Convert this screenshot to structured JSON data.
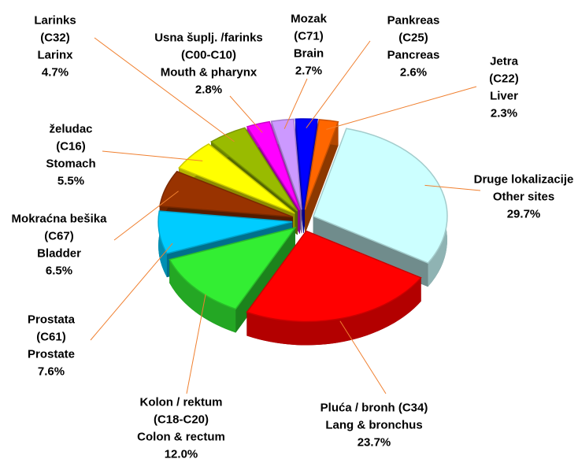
{
  "chart_data": {
    "type": "pie3d",
    "categories": [
      [
        "Jetra",
        "(C22)",
        "Liver"
      ],
      [
        "Druge lokalizacije",
        "Other sites"
      ],
      [
        "Pluća / bronh (C34)",
        "Lang & bronchus"
      ],
      [
        "Kolon / rektum",
        "(C18-C20)",
        "Colon & rectum"
      ],
      [
        "Prostata",
        "(C61)",
        "Prostate"
      ],
      [
        "Mokraćna bešika",
        "(C67)",
        "Bladder"
      ],
      [
        "želudac",
        "(C16)",
        "Stomach"
      ],
      [
        "Larinks",
        "(C32)",
        "Larinx"
      ],
      [
        "Usna šuplj. /farinks",
        "(C00-C10)",
        "Mouth & pharynx"
      ],
      [
        "Mozak",
        "(C71)",
        "Brain"
      ],
      [
        "Pankreas",
        "(C25)",
        "Pancreas"
      ]
    ],
    "values": [
      2.3,
      29.7,
      23.7,
      12.0,
      7.6,
      6.5,
      5.5,
      4.7,
      2.8,
      2.7,
      2.6
    ],
    "value_labels": [
      "2.3%",
      "29.7%",
      "23.7%",
      "12.0%",
      "7.6%",
      "6.5%",
      "5.5%",
      "4.7%",
      "2.8%",
      "2.7%",
      "2.6%"
    ],
    "colors": [
      "#ff6600",
      "#ccffff",
      "#ff0000",
      "#33ee33",
      "#00ccff",
      "#993300",
      "#ffff00",
      "#99bb00",
      "#ff00ff",
      "#cc99ff",
      "#0000ff"
    ]
  }
}
